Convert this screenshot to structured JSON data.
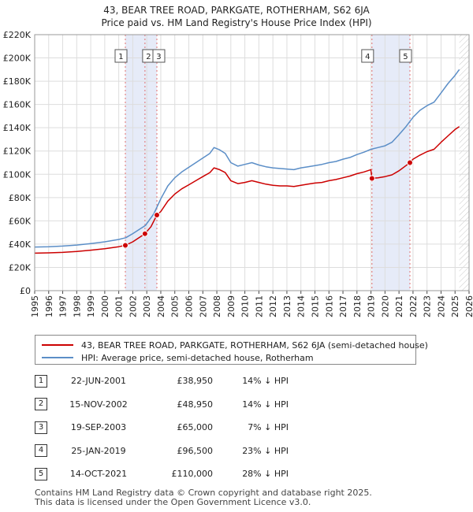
{
  "chart_data": {
    "type": "line",
    "title": "43, BEAR TREE ROAD, PARKGATE, ROTHERHAM, S62 6JA",
    "subtitle": "Price paid vs. HM Land Registry's House Price Index (HPI)",
    "xlim": [
      1995,
      2026
    ],
    "ylim": [
      0,
      220000
    ],
    "x_ticks": [
      "1995",
      "1996",
      "1997",
      "1998",
      "1999",
      "2000",
      "2001",
      "2002",
      "2003",
      "2004",
      "2005",
      "2006",
      "2007",
      "2008",
      "2009",
      "2010",
      "2011",
      "2012",
      "2013",
      "2014",
      "2015",
      "2016",
      "2017",
      "2018",
      "2019",
      "2020",
      "2021",
      "2022",
      "2023",
      "2024",
      "2025",
      "2026"
    ],
    "y_ticks": [
      {
        "value": 0,
        "label": "£0"
      },
      {
        "value": 20000,
        "label": "£20K"
      },
      {
        "value": 40000,
        "label": "£40K"
      },
      {
        "value": 60000,
        "label": "£60K"
      },
      {
        "value": 80000,
        "label": "£80K"
      },
      {
        "value": 100000,
        "label": "£100K"
      },
      {
        "value": 120000,
        "label": "£120K"
      },
      {
        "value": 140000,
        "label": "£140K"
      },
      {
        "value": 160000,
        "label": "£160K"
      },
      {
        "value": 180000,
        "label": "£180K"
      },
      {
        "value": 200000,
        "label": "£200K"
      },
      {
        "value": 220000,
        "label": "£220K"
      }
    ],
    "shaded_periods": [
      [
        2001.47,
        2003.72
      ],
      [
        2019.07,
        2021.78
      ]
    ],
    "future_hatch_from": 2025.3,
    "series": [
      {
        "name": "HPI: Average price, semi-detached house, Rotherham",
        "color": "#5b8ec7",
        "points": [
          [
            1995.0,
            37500
          ],
          [
            1996.0,
            37800
          ],
          [
            1997.0,
            38300
          ],
          [
            1998.0,
            39200
          ],
          [
            1999.0,
            40500
          ],
          [
            2000.0,
            42000
          ],
          [
            2001.0,
            44000
          ],
          [
            2001.5,
            45500
          ],
          [
            2002.0,
            49000
          ],
          [
            2002.9,
            56000
          ],
          [
            2003.5,
            66000
          ],
          [
            2004.0,
            79000
          ],
          [
            2004.5,
            90000
          ],
          [
            2005.0,
            97000
          ],
          [
            2005.5,
            102000
          ],
          [
            2006.0,
            106000
          ],
          [
            2006.5,
            110000
          ],
          [
            2007.0,
            114000
          ],
          [
            2007.5,
            118000
          ],
          [
            2007.8,
            123000
          ],
          [
            2008.2,
            121000
          ],
          [
            2008.6,
            118000
          ],
          [
            2009.0,
            110000
          ],
          [
            2009.5,
            107000
          ],
          [
            2010.0,
            108500
          ],
          [
            2010.5,
            110000
          ],
          [
            2011.0,
            108000
          ],
          [
            2011.5,
            106500
          ],
          [
            2012.0,
            105500
          ],
          [
            2012.5,
            105000
          ],
          [
            2013.0,
            104500
          ],
          [
            2013.5,
            104000
          ],
          [
            2014.0,
            105500
          ],
          [
            2014.5,
            106500
          ],
          [
            2015.0,
            107500
          ],
          [
            2015.5,
            108500
          ],
          [
            2016.0,
            110000
          ],
          [
            2016.5,
            111000
          ],
          [
            2017.0,
            113000
          ],
          [
            2017.5,
            114500
          ],
          [
            2018.0,
            117000
          ],
          [
            2018.5,
            119000
          ],
          [
            2019.0,
            121500
          ],
          [
            2019.5,
            123000
          ],
          [
            2020.0,
            124500
          ],
          [
            2020.5,
            127500
          ],
          [
            2021.0,
            134000
          ],
          [
            2021.5,
            141000
          ],
          [
            2022.0,
            149000
          ],
          [
            2022.5,
            155000
          ],
          [
            2023.0,
            159000
          ],
          [
            2023.5,
            162000
          ],
          [
            2024.0,
            170000
          ],
          [
            2024.5,
            178000
          ],
          [
            2025.0,
            185000
          ],
          [
            2025.3,
            190000
          ]
        ]
      },
      {
        "name": "43, BEAR TREE ROAD, PARKGATE, ROTHERHAM, S62 6JA (semi-detached house)",
        "color": "#cc0000",
        "points": [
          [
            1995.0,
            32200
          ],
          [
            1996.0,
            32500
          ],
          [
            1997.0,
            32900
          ],
          [
            1998.0,
            33700
          ],
          [
            1999.0,
            34800
          ],
          [
            2000.0,
            36100
          ],
          [
            2001.0,
            37800
          ],
          [
            2001.47,
            38950
          ],
          [
            2002.0,
            42000
          ],
          [
            2002.87,
            48950
          ],
          [
            2003.3,
            55000
          ],
          [
            2003.72,
            65000
          ],
          [
            2004.0,
            68000
          ],
          [
            2004.5,
            77000
          ],
          [
            2005.0,
            83000
          ],
          [
            2005.5,
            87500
          ],
          [
            2006.0,
            91000
          ],
          [
            2006.5,
            94500
          ],
          [
            2007.0,
            98000
          ],
          [
            2007.5,
            101500
          ],
          [
            2007.8,
            105500
          ],
          [
            2008.2,
            104000
          ],
          [
            2008.6,
            101500
          ],
          [
            2009.0,
            94500
          ],
          [
            2009.5,
            92000
          ],
          [
            2010.0,
            93000
          ],
          [
            2010.5,
            94500
          ],
          [
            2011.0,
            93000
          ],
          [
            2011.5,
            91500
          ],
          [
            2012.0,
            90500
          ],
          [
            2012.5,
            90000
          ],
          [
            2013.0,
            90000
          ],
          [
            2013.5,
            89500
          ],
          [
            2014.0,
            90500
          ],
          [
            2014.5,
            91500
          ],
          [
            2015.0,
            92500
          ],
          [
            2015.5,
            93000
          ],
          [
            2016.0,
            94500
          ],
          [
            2016.5,
            95500
          ],
          [
            2017.0,
            97000
          ],
          [
            2017.5,
            98500
          ],
          [
            2018.0,
            100500
          ],
          [
            2018.5,
            102000
          ],
          [
            2018.99,
            104000
          ],
          [
            2019.07,
            96500
          ],
          [
            2019.5,
            97000
          ],
          [
            2020.0,
            98000
          ],
          [
            2020.5,
            99500
          ],
          [
            2021.0,
            103000
          ],
          [
            2021.5,
            107500
          ],
          [
            2021.78,
            110000
          ],
          [
            2022.0,
            113000
          ],
          [
            2022.5,
            116500
          ],
          [
            2023.0,
            119500
          ],
          [
            2023.5,
            121500
          ],
          [
            2024.0,
            127500
          ],
          [
            2024.5,
            133000
          ],
          [
            2025.0,
            138500
          ],
          [
            2025.3,
            141000
          ]
        ]
      }
    ],
    "sales": [
      {
        "id": "1",
        "x": 2001.47,
        "price": 38950
      },
      {
        "id": "2",
        "x": 2002.87,
        "price": 48950
      },
      {
        "id": "3",
        "x": 2003.72,
        "price": 65000
      },
      {
        "id": "4",
        "x": 2019.07,
        "price": 96500
      },
      {
        "id": "5",
        "x": 2021.78,
        "price": 110000
      }
    ]
  },
  "legend": {
    "property": "43, BEAR TREE ROAD, PARKGATE, ROTHERHAM, S62 6JA (semi-detached house)",
    "hpi": "HPI: Average price, semi-detached house, Rotherham"
  },
  "table": [
    {
      "num": "1",
      "date": "22-JUN-2001",
      "price": "£38,950",
      "pct": "14% ↓ HPI"
    },
    {
      "num": "2",
      "date": "15-NOV-2002",
      "price": "£48,950",
      "pct": "14% ↓ HPI"
    },
    {
      "num": "3",
      "date": "19-SEP-2003",
      "price": "£65,000",
      "pct": "7% ↓ HPI"
    },
    {
      "num": "4",
      "date": "25-JAN-2019",
      "price": "£96,500",
      "pct": "23% ↓ HPI"
    },
    {
      "num": "5",
      "date": "14-OCT-2021",
      "price": "£110,000",
      "pct": "28% ↓ HPI"
    }
  ],
  "footer": {
    "line1": "Contains HM Land Registry data © Crown copyright and database right 2025.",
    "line2": "This data is licensed under the Open Government Licence v3.0."
  }
}
